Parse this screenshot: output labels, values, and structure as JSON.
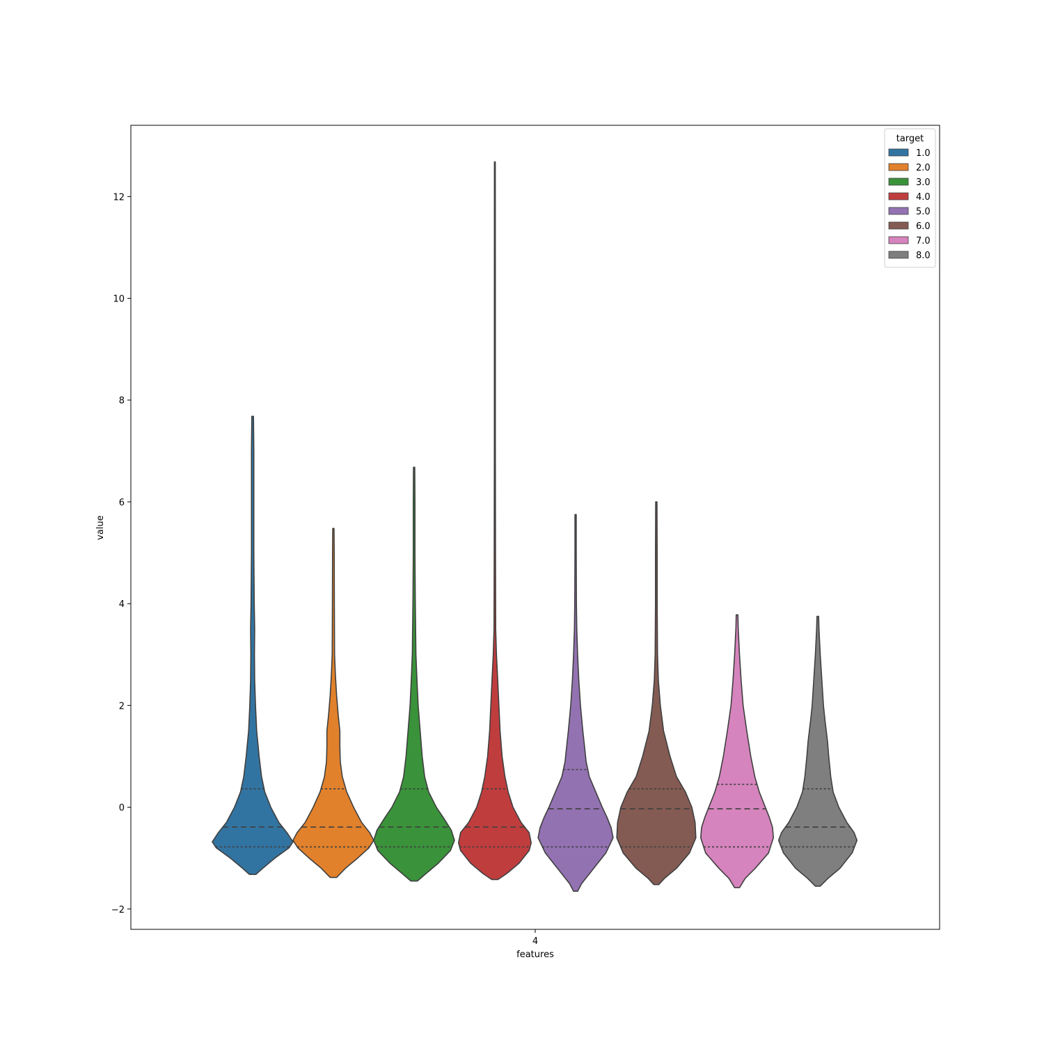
{
  "chart_data": {
    "type": "violin",
    "xlabel": "features",
    "ylabel": "value",
    "categories": [
      "4"
    ],
    "ylim": [
      -2.4,
      13.4
    ],
    "yticks": [
      -2,
      0,
      2,
      4,
      6,
      8,
      10,
      12
    ],
    "ytick_labels": [
      "−2",
      "0",
      "2",
      "4",
      "6",
      "8",
      "10",
      "12"
    ],
    "grid": false,
    "legend": {
      "title": "target",
      "position": "top-right"
    },
    "series": [
      {
        "name": "1.0",
        "color": "#3274a1",
        "min": -1.32,
        "max": 7.68,
        "q1": -0.78,
        "median": -0.39,
        "q3": 0.36,
        "profile": [
          [
            -1.32,
            0.08
          ],
          [
            -1.2,
            0.25
          ],
          [
            -1.0,
            0.55
          ],
          [
            -0.8,
            0.9
          ],
          [
            -0.68,
            1.0
          ],
          [
            -0.5,
            0.85
          ],
          [
            -0.3,
            0.65
          ],
          [
            0,
            0.45
          ],
          [
            0.3,
            0.3
          ],
          [
            0.6,
            0.22
          ],
          [
            1.0,
            0.16
          ],
          [
            1.5,
            0.1
          ],
          [
            2.0,
            0.07
          ],
          [
            2.5,
            0.05
          ],
          [
            3.0,
            0.045
          ],
          [
            3.5,
            0.05
          ],
          [
            4.0,
            0.04
          ],
          [
            5.0,
            0.03
          ],
          [
            6.0,
            0.03
          ],
          [
            7.0,
            0.03
          ],
          [
            7.68,
            0.02
          ]
        ]
      },
      {
        "name": "2.0",
        "color": "#e1812c",
        "min": -1.38,
        "max": 5.48,
        "q1": -0.78,
        "median": -0.39,
        "q3": 0.36,
        "profile": [
          [
            -1.38,
            0.08
          ],
          [
            -1.2,
            0.3
          ],
          [
            -1.0,
            0.6
          ],
          [
            -0.8,
            0.88
          ],
          [
            -0.65,
            1.0
          ],
          [
            -0.5,
            0.9
          ],
          [
            -0.3,
            0.7
          ],
          [
            0,
            0.5
          ],
          [
            0.3,
            0.33
          ],
          [
            0.6,
            0.22
          ],
          [
            0.9,
            0.17
          ],
          [
            1.2,
            0.16
          ],
          [
            1.5,
            0.16
          ],
          [
            1.8,
            0.12
          ],
          [
            2.2,
            0.08
          ],
          [
            2.6,
            0.05
          ],
          [
            3.0,
            0.03
          ],
          [
            4.0,
            0.025
          ],
          [
            5.0,
            0.02
          ],
          [
            5.48,
            0.015
          ]
        ]
      },
      {
        "name": "3.0",
        "color": "#3a923a",
        "min": -1.45,
        "max": 6.68,
        "q1": -0.78,
        "median": -0.39,
        "q3": 0.36,
        "profile": [
          [
            -1.45,
            0.08
          ],
          [
            -1.3,
            0.3
          ],
          [
            -1.1,
            0.6
          ],
          [
            -0.85,
            0.9
          ],
          [
            -0.65,
            1.0
          ],
          [
            -0.45,
            0.92
          ],
          [
            -0.2,
            0.72
          ],
          [
            0,
            0.55
          ],
          [
            0.3,
            0.36
          ],
          [
            0.6,
            0.26
          ],
          [
            1.0,
            0.2
          ],
          [
            1.5,
            0.15
          ],
          [
            2.0,
            0.1
          ],
          [
            2.5,
            0.07
          ],
          [
            3.0,
            0.045
          ],
          [
            4.0,
            0.03
          ],
          [
            5.0,
            0.02
          ],
          [
            6.0,
            0.02
          ],
          [
            6.68,
            0.015
          ]
        ]
      },
      {
        "name": "4.0",
        "color": "#c03d3e",
        "min": -1.42,
        "max": 12.68,
        "q1": -0.78,
        "median": -0.39,
        "q3": 0.36,
        "profile": [
          [
            -1.42,
            0.08
          ],
          [
            -1.3,
            0.3
          ],
          [
            -1.1,
            0.6
          ],
          [
            -0.85,
            0.85
          ],
          [
            -0.7,
            0.9
          ],
          [
            -0.5,
            0.85
          ],
          [
            -0.3,
            0.65
          ],
          [
            0,
            0.45
          ],
          [
            0.3,
            0.33
          ],
          [
            0.6,
            0.25
          ],
          [
            1.0,
            0.18
          ],
          [
            1.5,
            0.13
          ],
          [
            2.0,
            0.1
          ],
          [
            2.5,
            0.07
          ],
          [
            3.0,
            0.04
          ],
          [
            3.5,
            0.02
          ],
          [
            5.0,
            0.015
          ],
          [
            7.0,
            0.012
          ],
          [
            10.0,
            0.012
          ],
          [
            12.68,
            0.01
          ]
        ]
      },
      {
        "name": "5.0",
        "color": "#9372b2",
        "min": -1.65,
        "max": 5.75,
        "q1": -0.78,
        "median": -0.03,
        "q3": 0.74,
        "profile": [
          [
            -1.65,
            0.05
          ],
          [
            -1.5,
            0.15
          ],
          [
            -1.2,
            0.45
          ],
          [
            -0.9,
            0.75
          ],
          [
            -0.6,
            0.93
          ],
          [
            -0.4,
            0.88
          ],
          [
            -0.2,
            0.78
          ],
          [
            0,
            0.66
          ],
          [
            0.3,
            0.5
          ],
          [
            0.6,
            0.34
          ],
          [
            0.9,
            0.26
          ],
          [
            1.2,
            0.22
          ],
          [
            1.5,
            0.18
          ],
          [
            2.0,
            0.12
          ],
          [
            2.5,
            0.08
          ],
          [
            3.0,
            0.05
          ],
          [
            3.5,
            0.03
          ],
          [
            4.0,
            0.02
          ],
          [
            5.0,
            0.015
          ],
          [
            5.75,
            0.015
          ]
        ]
      },
      {
        "name": "6.0",
        "color": "#845b53",
        "min": -1.52,
        "max": 6.0,
        "q1": -0.78,
        "median": -0.03,
        "q3": 0.36,
        "profile": [
          [
            -1.52,
            0.06
          ],
          [
            -1.4,
            0.2
          ],
          [
            -1.2,
            0.5
          ],
          [
            -0.9,
            0.82
          ],
          [
            -0.6,
            0.98
          ],
          [
            -0.3,
            0.96
          ],
          [
            0,
            0.88
          ],
          [
            0.3,
            0.72
          ],
          [
            0.6,
            0.5
          ],
          [
            1.0,
            0.34
          ],
          [
            1.5,
            0.18
          ],
          [
            2.0,
            0.1
          ],
          [
            2.5,
            0.05
          ],
          [
            3.0,
            0.03
          ],
          [
            4.0,
            0.02
          ],
          [
            5.0,
            0.02
          ],
          [
            6.0,
            0.015
          ]
        ]
      },
      {
        "name": "7.0",
        "color": "#d684bd",
        "min": -1.58,
        "max": 3.78,
        "q1": -0.78,
        "median": -0.03,
        "q3": 0.45,
        "profile": [
          [
            -1.58,
            0.06
          ],
          [
            -1.4,
            0.2
          ],
          [
            -1.2,
            0.45
          ],
          [
            -0.9,
            0.78
          ],
          [
            -0.6,
            0.9
          ],
          [
            -0.4,
            0.88
          ],
          [
            -0.2,
            0.8
          ],
          [
            0,
            0.7
          ],
          [
            0.3,
            0.55
          ],
          [
            0.6,
            0.44
          ],
          [
            1.0,
            0.34
          ],
          [
            1.5,
            0.24
          ],
          [
            2.0,
            0.15
          ],
          [
            2.5,
            0.1
          ],
          [
            3.0,
            0.06
          ],
          [
            3.5,
            0.03
          ],
          [
            3.78,
            0.02
          ]
        ]
      },
      {
        "name": "8.0",
        "color": "#7f7f7f",
        "min": -1.55,
        "max": 3.75,
        "q1": -0.78,
        "median": -0.39,
        "q3": 0.36,
        "profile": [
          [
            -1.55,
            0.06
          ],
          [
            -1.4,
            0.25
          ],
          [
            -1.2,
            0.55
          ],
          [
            -0.9,
            0.85
          ],
          [
            -0.65,
            0.97
          ],
          [
            -0.5,
            0.9
          ],
          [
            -0.3,
            0.72
          ],
          [
            0,
            0.52
          ],
          [
            0.3,
            0.38
          ],
          [
            0.6,
            0.32
          ],
          [
            1.0,
            0.27
          ],
          [
            1.3,
            0.24
          ],
          [
            1.7,
            0.18
          ],
          [
            2.0,
            0.14
          ],
          [
            2.5,
            0.1
          ],
          [
            3.0,
            0.06
          ],
          [
            3.5,
            0.03
          ],
          [
            3.75,
            0.02
          ]
        ]
      }
    ]
  }
}
